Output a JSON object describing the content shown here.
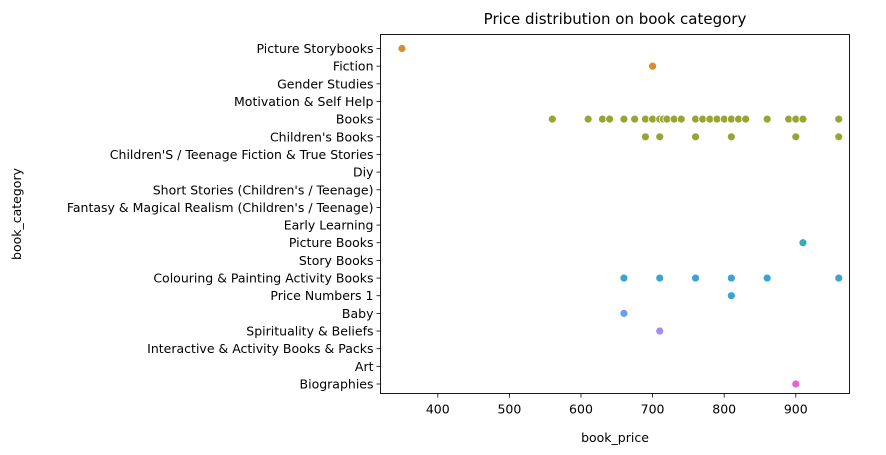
{
  "chart_data": {
    "type": "scatter",
    "title": "Price distribution on book category",
    "xlabel": "book_price",
    "ylabel": "book_category",
    "xlim": [
      320,
      975
    ],
    "xticks": [
      400,
      500,
      600,
      700,
      800,
      900
    ],
    "grid": false,
    "legend": "none",
    "categories": [
      "Picture Storybooks",
      "Fiction",
      "Gender Studies",
      "Motivation & Self Help",
      "Books",
      "Children's Books",
      "Children'S / Teenage Fiction & True Stories",
      "Diy",
      "Short Stories (Children's / Teenage)",
      "Fantasy & Magical Realism (Children's / Teenage)",
      "Early Learning",
      "Picture Books",
      "Story Books",
      "Colouring & Painting Activity Books",
      "Price Numbers 1",
      "Baby",
      "Spirituality & Beliefs",
      "Interactive & Activity Books & Packs",
      "Art",
      "Biographies"
    ],
    "series": [
      {
        "category": "Picture Storybooks",
        "color": "#d98c2e",
        "x": [
          350
        ]
      },
      {
        "category": "Fiction",
        "color": "#d98c2e",
        "x": [
          700
        ]
      },
      {
        "category": "Gender Studies",
        "color": "#c99b2b",
        "x": []
      },
      {
        "category": "Motivation & Self Help",
        "color": "#b3a12d",
        "x": []
      },
      {
        "category": "Books",
        "color": "#98a533",
        "x": [
          560,
          610,
          630,
          640,
          660,
          675,
          690,
          700,
          710,
          715,
          720,
          730,
          740,
          760,
          770,
          780,
          790,
          800,
          810,
          820,
          830,
          860,
          890,
          900,
          910,
          960
        ]
      },
      {
        "category": "Children's Books",
        "color": "#98a533",
        "x": [
          690,
          710,
          760,
          810,
          900,
          960
        ]
      },
      {
        "category": "Children'S / Teenage Fiction & True Stories",
        "color": "#6fa83a",
        "x": []
      },
      {
        "category": "Diy",
        "color": "#3bab5a",
        "x": []
      },
      {
        "category": "Short Stories (Children's / Teenage)",
        "color": "#36ad8a",
        "x": []
      },
      {
        "category": "Fantasy & Magical Realism (Children's / Teenage)",
        "color": "#37ab9e",
        "x": []
      },
      {
        "category": "Early Learning",
        "color": "#38aab0",
        "x": []
      },
      {
        "category": "Picture Books",
        "color": "#38a9b8",
        "x": [
          910
        ]
      },
      {
        "category": "Story Books",
        "color": "#39a7c3",
        "x": []
      },
      {
        "category": "Colouring & Painting Activity Books",
        "color": "#3aa3d2",
        "x": [
          660,
          710,
          760,
          810,
          860,
          960
        ]
      },
      {
        "category": "Price Numbers 1",
        "color": "#3aa3d2",
        "x": [
          810
        ]
      },
      {
        "category": "Baby",
        "color": "#6c9cf0",
        "x": [
          660
        ]
      },
      {
        "category": "Spirituality & Beliefs",
        "color": "#a48cf0",
        "x": [
          710
        ]
      },
      {
        "category": "Interactive & Activity Books & Packs",
        "color": "#c77ce8",
        "x": []
      },
      {
        "category": "Art",
        "color": "#dc6fd8",
        "x": []
      },
      {
        "category": "Biographies",
        "color": "#e563d3",
        "x": [
          900
        ]
      }
    ]
  }
}
